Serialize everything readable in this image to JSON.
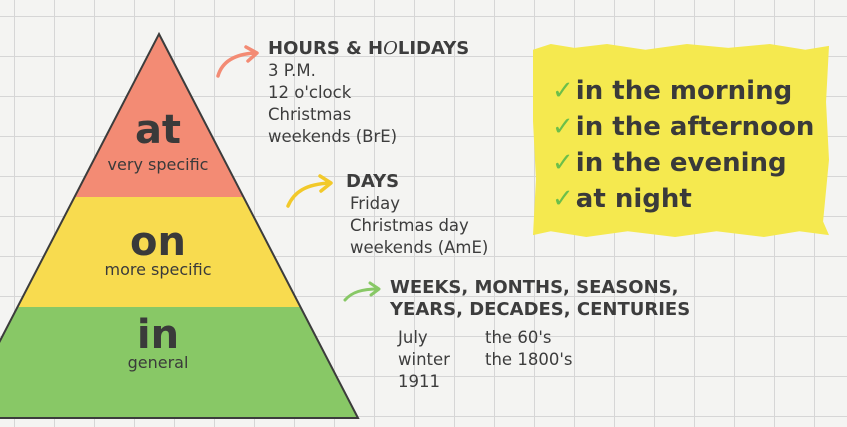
{
  "pyramid": {
    "tiers": [
      {
        "word": "at",
        "desc": "very specific",
        "color": "#f38b74"
      },
      {
        "word": "on",
        "desc": "more specific",
        "color": "#f8db4f"
      },
      {
        "word": "in",
        "desc": "general",
        "color": "#88c866"
      }
    ]
  },
  "blocks": {
    "at": {
      "heading_pre": "HOURS & H",
      "heading_o": "O",
      "heading_post": "LIDAYS",
      "items": [
        "3 P.M.",
        "12 o'clock",
        "Christmas",
        "weekends (BrE)"
      ],
      "arrow_color": "#f38b74"
    },
    "on": {
      "heading": "DAYS",
      "items": [
        "Friday",
        "Christmas day",
        "weekends (AmE)"
      ],
      "arrow_color": "#f2c92a"
    },
    "in": {
      "heading_line1": "WEEKS, MONTHS, SEASONS,",
      "heading_line2": "YEARS, DECADES, CENTURIES",
      "col1": [
        "July",
        "winter",
        "1911"
      ],
      "col2": [
        "the 60's",
        "the 1800's"
      ],
      "arrow_color": "#88c866"
    }
  },
  "note": {
    "check": "✓",
    "lines": [
      "in the morning",
      "in the afternoon",
      "in the evening",
      "at night"
    ],
    "bg_color": "#f5e94f"
  }
}
